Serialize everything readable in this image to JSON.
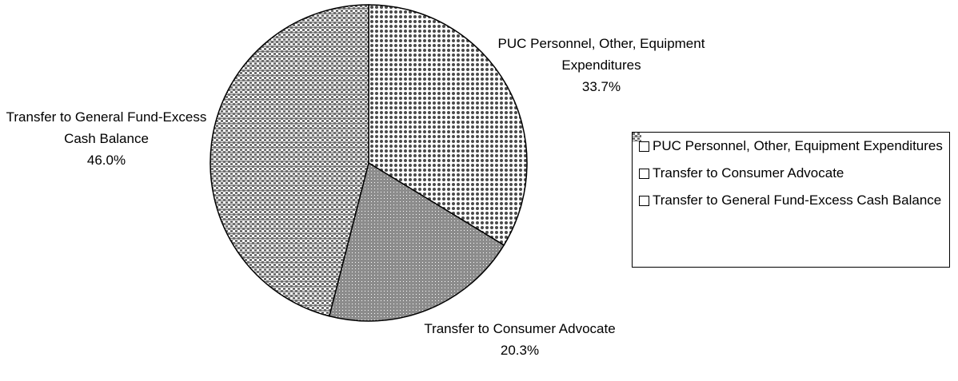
{
  "chart_data": {
    "type": "pie",
    "categories": [
      "PUC Personnel, Other, Equipment Expenditures",
      "Transfer to Consumer Advocate",
      "Transfer to General Fund-Excess Cash Balance"
    ],
    "values": [
      33.7,
      20.3,
      46.0
    ],
    "value_labels": [
      "33.7%",
      "20.3%",
      "46.0%"
    ],
    "colors": [
      "#4a4a4a",
      "#8c8c8c",
      "#6e6e6e"
    ],
    "legend": "right"
  }
}
